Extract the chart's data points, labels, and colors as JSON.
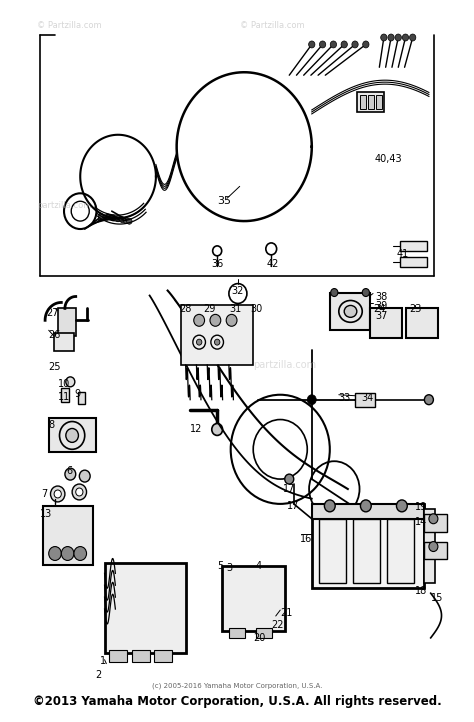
{
  "bg_color": "#ffffff",
  "fig_width": 4.74,
  "fig_height": 7.22,
  "footer_small": "(c) 2005-2016 Yamaha Motor Corporation, U.S.A.",
  "footer_large": "©2013 Yamaha Motor Corporation, U.S.A. All rights reserved.",
  "wm1": "© Partzilla.com",
  "wm2": "© Partzilla.com",
  "wm3": "partzilla.com",
  "wm4": "partzilla.com"
}
